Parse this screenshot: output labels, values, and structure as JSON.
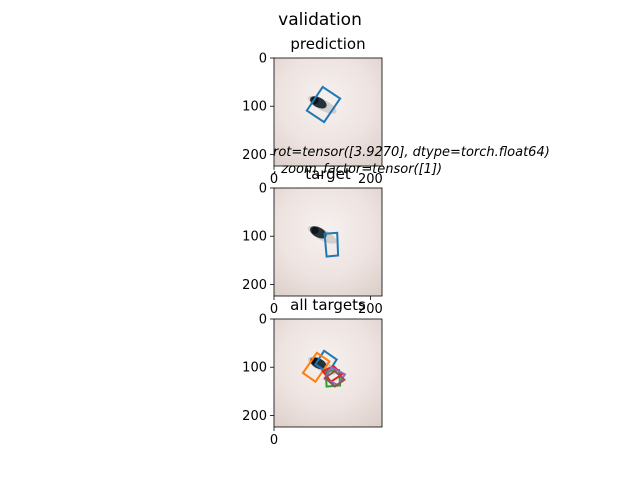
{
  "figure": {
    "suptitle": "validation",
    "note_line1": "rot=tensor([3.9270], dtype=torch.float64)",
    "note_line2": ", zoom_factor=tensor([1])"
  },
  "chart_data": [
    {
      "type": "image",
      "title": "prediction",
      "xlim": [
        0,
        224
      ],
      "ylim": [
        224,
        0
      ],
      "xticks": [
        "0",
        "200"
      ],
      "yticks": [
        "0",
        "100",
        "200"
      ],
      "boxes": [
        {
          "color": "#1f77b4",
          "corners": [
            [
              101,
              60
            ],
            [
              137,
              84
            ],
            [
              104,
              133
            ],
            [
              68,
              109
            ]
          ]
        }
      ]
    },
    {
      "type": "image",
      "title": "target",
      "xlim": [
        0,
        224
      ],
      "ylim": [
        224,
        0
      ],
      "xticks": [
        "0",
        "200"
      ],
      "yticks": [
        "0",
        "100",
        "200"
      ],
      "boxes": [
        {
          "color": "#1f77b4",
          "corners": [
            [
              105,
              95
            ],
            [
              131,
              93
            ],
            [
              133,
              140
            ],
            [
              109,
              142
            ]
          ]
        }
      ]
    },
    {
      "type": "image",
      "title": "all targets",
      "xlim": [
        0,
        224
      ],
      "ylim": [
        224,
        0
      ],
      "xticks": [
        "0"
      ],
      "yticks": [
        "0",
        "100",
        "200"
      ],
      "boxes": [
        {
          "color": "#1f77b4",
          "corners": [
            [
              104,
              66
            ],
            [
              130,
              84
            ],
            [
              112,
              112
            ],
            [
              86,
              94
            ]
          ]
        },
        {
          "color": "#ff7f0e",
          "corners": [
            [
              89,
              70
            ],
            [
              115,
              88
            ],
            [
              86,
              130
            ],
            [
              60,
              112
            ]
          ]
        },
        {
          "color": "#2ca02c",
          "corners": [
            [
              107,
              108
            ],
            [
              135,
              106
            ],
            [
              137,
              138
            ],
            [
              109,
              140
            ]
          ]
        },
        {
          "color": "#d62728",
          "corners": [
            [
              101,
              108
            ],
            [
              124,
              98
            ],
            [
              141,
              115
            ],
            [
              118,
              130
            ]
          ]
        },
        {
          "color": "#9467bd",
          "corners": [
            [
              119,
              100
            ],
            [
              147,
              115
            ],
            [
              133,
              137
            ],
            [
              105,
              124
            ]
          ]
        },
        {
          "color": "#8c564b",
          "corners": [
            [
              106,
              122
            ],
            [
              126,
              108
            ],
            [
              146,
              126
            ],
            [
              126,
              140
            ]
          ]
        }
      ]
    }
  ]
}
